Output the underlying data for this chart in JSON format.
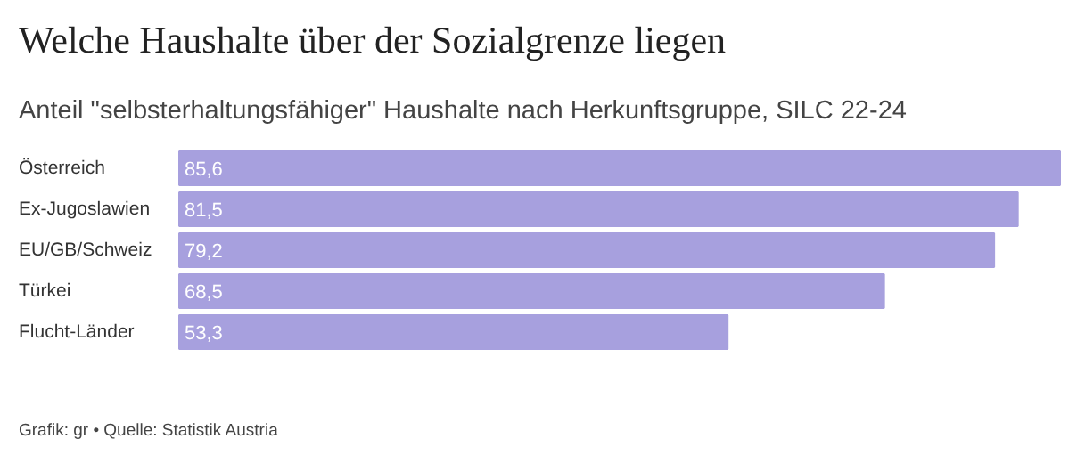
{
  "chart_data": {
    "type": "bar",
    "orientation": "horizontal",
    "title": "Welche Haushalte über der Sozialgrenze liegen",
    "subtitle": "Anteil \"selbsterhaltungsfähiger\" Haushalte nach Herkunftsgruppe, SILC 22-24",
    "categories": [
      "Österreich",
      "Ex-Jugoslawien",
      "EU/GB/Schweiz",
      "Türkei",
      "Flucht-Länder"
    ],
    "values": [
      85.6,
      81.5,
      79.2,
      68.5,
      53.3
    ],
    "value_labels": [
      "85,6",
      "81,5",
      "79,2",
      "68,5",
      "53,3"
    ],
    "color": "#a7a0de",
    "annotations": [
      "Grafik: gr • Quelle: Statistik Austria"
    ]
  }
}
